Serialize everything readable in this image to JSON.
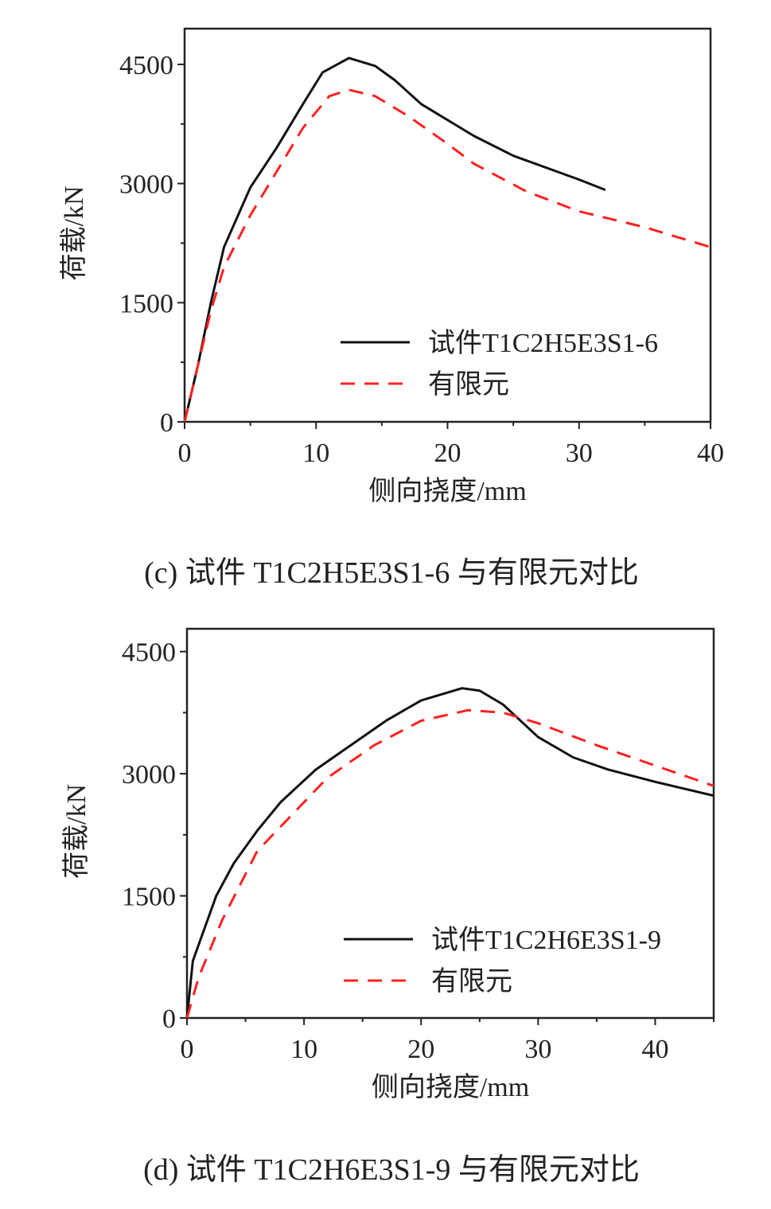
{
  "chart_data": [
    {
      "type": "line",
      "caption": "(c) 试件 T1C2H5E3S1-6 与有限元对比",
      "xlabel": "侧向挠度/mm",
      "ylabel": "荷载/kN",
      "xlim": [
        0,
        40
      ],
      "ylim": [
        0,
        4950
      ],
      "xticks": [
        0,
        10,
        20,
        30,
        40
      ],
      "yticks": [
        0,
        1500,
        3000,
        4500
      ],
      "grid": false,
      "legend_position": "bottom-right",
      "series": [
        {
          "name": "试件T1C2H5E3S1-6",
          "color": "#111111",
          "dash": "solid",
          "x": [
            0,
            1,
            2,
            3,
            5,
            7,
            9,
            10.5,
            12.5,
            14.5,
            16,
            18,
            22,
            25,
            30,
            32
          ],
          "y": [
            0,
            700,
            1500,
            2200,
            2950,
            3450,
            4000,
            4400,
            4580,
            4480,
            4300,
            4000,
            3600,
            3350,
            3050,
            2920
          ]
        },
        {
          "name": "有限元",
          "color": "#ff2020",
          "dash": "dashed",
          "x": [
            0,
            1,
            2,
            3,
            5,
            7,
            9,
            11,
            12.5,
            14.5,
            17,
            20,
            22,
            26,
            30,
            35,
            40
          ],
          "y": [
            0,
            700,
            1400,
            1950,
            2600,
            3150,
            3700,
            4100,
            4180,
            4100,
            3850,
            3500,
            3250,
            2900,
            2650,
            2450,
            2200
          ]
        }
      ]
    },
    {
      "type": "line",
      "caption": "(d) 试件 T1C2H6E3S1-9 与有限元对比",
      "xlabel": "侧向挠度/mm",
      "ylabel": "荷载/kN",
      "xlim": [
        0,
        45
      ],
      "ylim": [
        0,
        4780
      ],
      "xticks": [
        0,
        10,
        20,
        30,
        40
      ],
      "yticks": [
        0,
        1500,
        3000,
        4500
      ],
      "grid": false,
      "legend_position": "bottom-right",
      "series": [
        {
          "name": "试件T1C2H6E3S1-9",
          "color": "#111111",
          "dash": "solid",
          "x": [
            0,
            0.5,
            1,
            2.5,
            4,
            6,
            8,
            11,
            14,
            17,
            20,
            23.5,
            25,
            27,
            30,
            33,
            36,
            40,
            45
          ],
          "y": [
            0,
            700,
            900,
            1500,
            1900,
            2300,
            2650,
            3050,
            3350,
            3650,
            3900,
            4050,
            4020,
            3850,
            3450,
            3200,
            3050,
            2900,
            2730
          ]
        },
        {
          "name": "有限元",
          "color": "#ff2020",
          "dash": "dashed",
          "x": [
            0,
            1,
            3,
            6,
            9,
            12,
            16,
            20,
            24,
            27,
            30,
            35,
            40,
            45
          ],
          "y": [
            0,
            500,
            1200,
            2050,
            2500,
            2950,
            3350,
            3650,
            3780,
            3750,
            3620,
            3350,
            3100,
            2850
          ]
        }
      ]
    }
  ]
}
